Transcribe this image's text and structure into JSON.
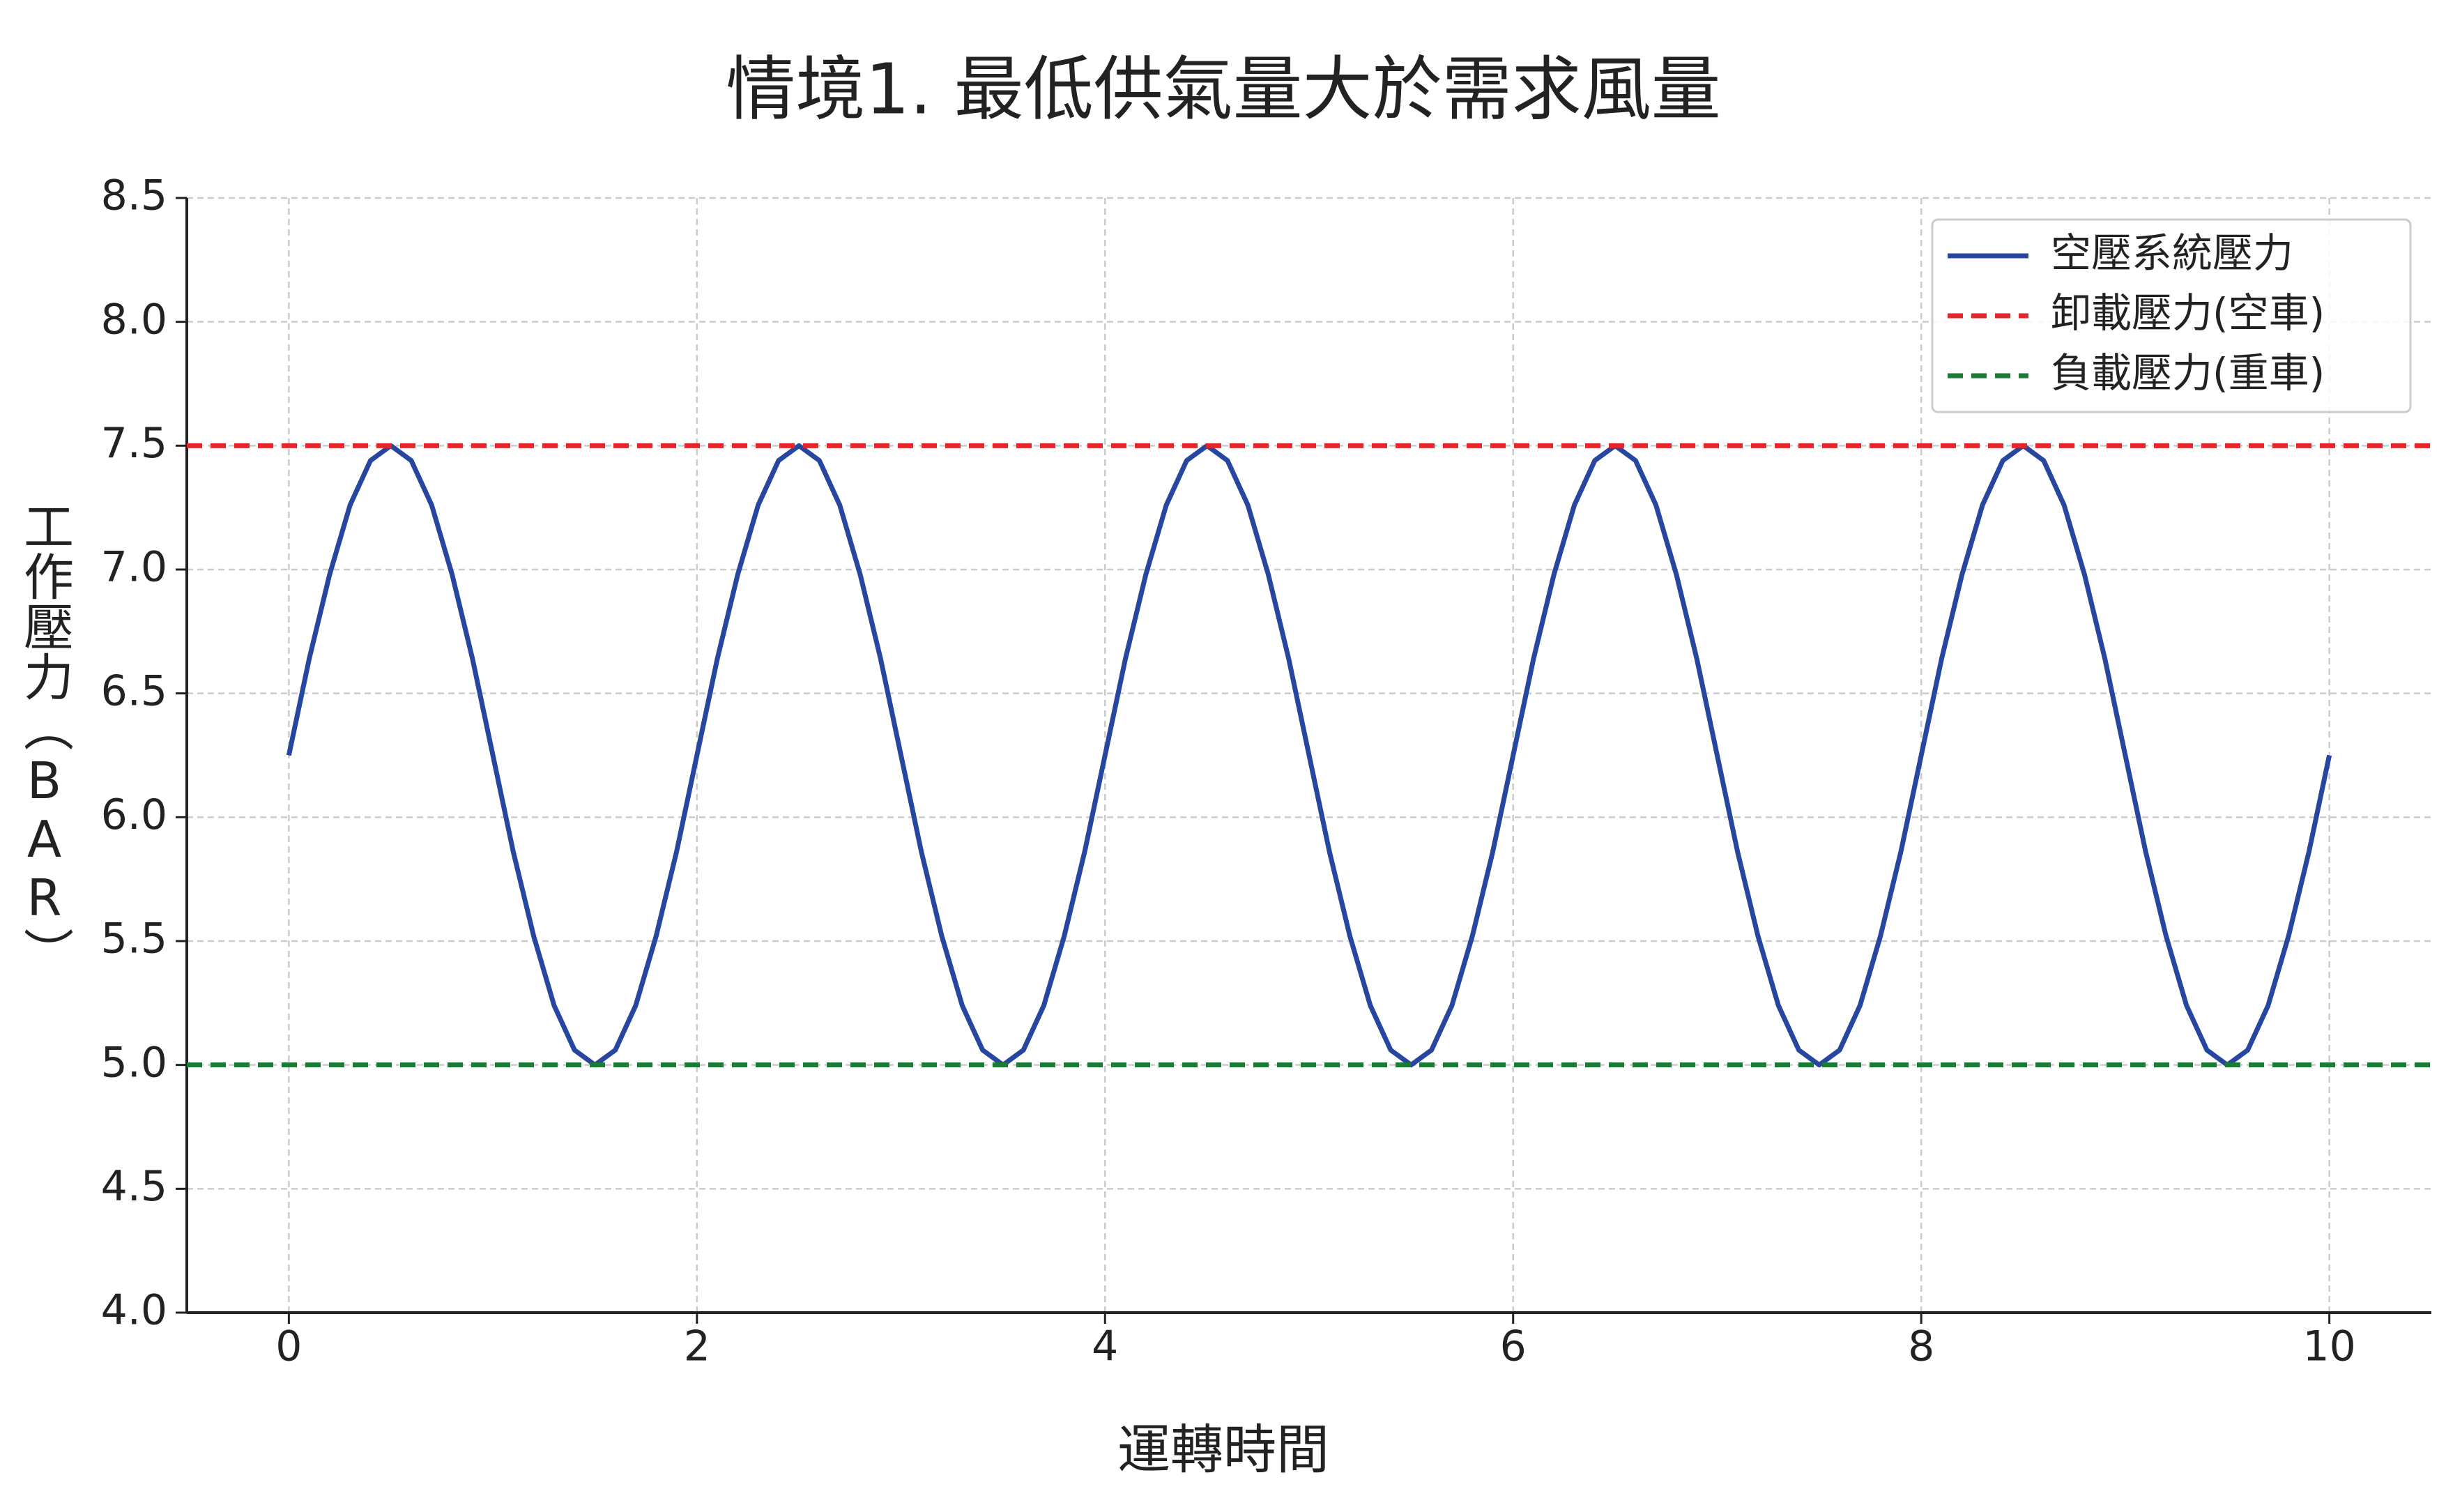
{
  "chart_data": {
    "type": "line",
    "title": "情境1. 最低供氣量大於需求風量",
    "x_label": "運轉時間",
    "y_label": "工作壓力（BAR）",
    "xlim": [
      -0.5,
      10.5
    ],
    "xticks": [
      0,
      2,
      4,
      6,
      8,
      10
    ],
    "ylim": [
      4,
      8.5
    ],
    "yticks": [
      {
        "value": 4,
        "label": "4.0"
      },
      4.5,
      {
        "value": 5,
        "label": "5.0"
      },
      5.5,
      {
        "value": 6,
        "label": "6.0"
      },
      6.5,
      {
        "value": 7,
        "label": "7.0"
      },
      7.5,
      {
        "value": 8,
        "label": "8.0"
      },
      8.5
    ],
    "grid": true,
    "legend": "upper right",
    "series": [
      {
        "name": "空壓系統壓力",
        "color": "#2646a0",
        "style": "solid",
        "x": [
          0,
          0.1,
          0.2,
          0.3,
          0.4,
          0.5,
          0.6,
          0.7,
          0.8,
          0.9,
          1,
          1.1,
          1.2,
          1.3,
          1.4,
          1.5,
          1.6,
          1.7,
          1.8,
          1.9,
          2,
          2.1,
          2.2,
          2.3,
          2.4,
          2.5,
          2.6,
          2.7,
          2.8,
          2.9,
          3,
          3.1,
          3.2,
          3.3,
          3.4,
          3.5,
          3.6,
          3.7,
          3.8,
          3.9,
          4,
          4.1,
          4.2,
          4.3,
          4.4,
          4.5,
          4.6,
          4.7,
          4.8,
          4.9,
          5,
          5.1,
          5.2,
          5.3,
          5.4,
          5.5,
          5.6,
          5.7,
          5.8,
          5.9,
          6,
          6.1,
          6.2,
          6.3,
          6.4,
          6.5,
          6.6,
          6.7,
          6.8,
          6.9,
          7,
          7.1,
          7.2,
          7.3,
          7.4,
          7.5,
          7.6,
          7.7,
          7.8,
          7.9,
          8,
          8.1,
          8.2,
          8.3,
          8.4,
          8.5,
          8.6,
          8.7,
          8.8,
          8.9,
          9,
          9.1,
          9.2,
          9.3,
          9.4,
          9.5,
          9.6,
          9.7,
          9.8,
          9.9,
          10
        ],
        "values": [
          6.25,
          6.64,
          6.98,
          7.26,
          7.44,
          7.5,
          7.44,
          7.26,
          6.98,
          6.64,
          6.25,
          5.86,
          5.52,
          5.24,
          5.06,
          5.0,
          5.06,
          5.24,
          5.52,
          5.86,
          6.25,
          6.64,
          6.98,
          7.26,
          7.44,
          7.5,
          7.44,
          7.26,
          6.98,
          6.64,
          6.25,
          5.86,
          5.52,
          5.24,
          5.06,
          5.0,
          5.06,
          5.24,
          5.52,
          5.86,
          6.25,
          6.64,
          6.98,
          7.26,
          7.44,
          7.5,
          7.44,
          7.26,
          6.98,
          6.64,
          6.25,
          5.86,
          5.52,
          5.24,
          5.06,
          5.0,
          5.06,
          5.24,
          5.52,
          5.86,
          6.25,
          6.64,
          6.98,
          7.26,
          7.44,
          7.5,
          7.44,
          7.26,
          6.98,
          6.64,
          6.25,
          5.86,
          5.52,
          5.24,
          5.06,
          5.0,
          5.06,
          5.24,
          5.52,
          5.86,
          6.25,
          6.64,
          6.98,
          7.26,
          7.44,
          7.5,
          7.44,
          7.26,
          6.98,
          6.64,
          6.25,
          5.86,
          5.52,
          5.24,
          5.06,
          5.0,
          5.06,
          5.24,
          5.52,
          5.86,
          6.25
        ]
      },
      {
        "name": "卸載壓力(空車)",
        "color": "#e3262b",
        "style": "dashed",
        "x": [
          -0.5,
          10.5
        ],
        "values": [
          7.5,
          7.5
        ]
      },
      {
        "name": "負載壓力(重車)",
        "color": "#1b7a35",
        "style": "dashed",
        "x": [
          -0.5,
          10.5
        ],
        "values": [
          5,
          5
        ]
      }
    ]
  }
}
